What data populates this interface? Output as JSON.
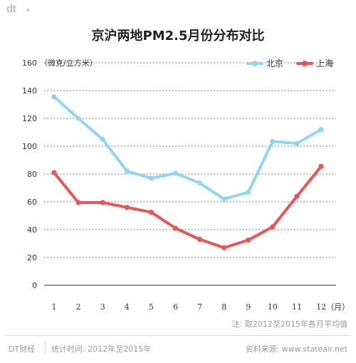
{
  "brand": {
    "logo": "dt"
  },
  "chart_data": {
    "type": "line",
    "title": "京沪两地PM2.5月份分布对比",
    "ylabel": "（微克/立方米）",
    "xlabel": "（月）",
    "categories": [
      "1",
      "2",
      "3",
      "4",
      "5",
      "6",
      "7",
      "8",
      "9",
      "10",
      "11",
      "12"
    ],
    "ylim": [
      0,
      160
    ],
    "yticks": [
      0,
      20,
      40,
      60,
      80,
      100,
      120,
      140,
      160
    ],
    "grid": true,
    "legend_position": "top-right",
    "series": [
      {
        "name": "北京",
        "color": "#8fd6f2",
        "values": [
          135.5,
          120,
          105,
          82,
          77,
          80.5,
          73.5,
          62,
          67,
          103.5,
          102,
          112
        ]
      },
      {
        "name": "上海",
        "color": "#ec5453",
        "values": [
          81,
          59.5,
          59.5,
          56,
          52.5,
          41,
          33,
          27,
          32.5,
          42,
          64,
          85.5
        ]
      }
    ]
  },
  "note": "注: 取2012至2015年各月平均值",
  "footer": {
    "brand": "DT财经",
    "period": "统计时间: 2012年至2015年",
    "source": "资料来源: www.stateair.net"
  }
}
